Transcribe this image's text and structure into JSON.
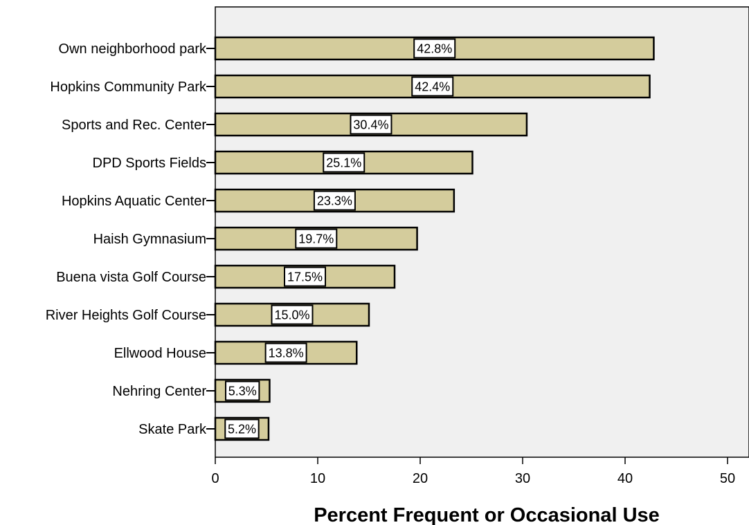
{
  "chart_data": {
    "type": "bar",
    "orientation": "horizontal",
    "categories": [
      "Own neighborhood park",
      "Hopkins Community Park",
      "Sports and Rec. Center",
      "DPD Sports Fields",
      "Hopkins Aquatic Center",
      "Haish Gymnasium",
      "Buena vista Golf Course",
      "River Heights Golf Course",
      "Ellwood House",
      "Nehring Center",
      "Skate Park"
    ],
    "values": [
      42.8,
      42.4,
      30.4,
      25.1,
      23.3,
      19.7,
      17.5,
      15.0,
      13.8,
      5.3,
      5.2
    ],
    "data_labels": [
      "42.8%",
      "42.4%",
      "30.4%",
      "25.1%",
      "23.3%",
      "19.7%",
      "17.5%",
      "15.0%",
      "13.8%",
      "5.3%",
      "5.2%"
    ],
    "xlabel": "Percent Frequent or Occasional Use",
    "ylabel": "",
    "title": "",
    "xlim": [
      0,
      52
    ],
    "xticks": [
      0,
      10,
      20,
      30,
      40,
      50
    ],
    "xtick_labels": [
      "0",
      "10",
      "20",
      "30",
      "40",
      "50"
    ],
    "grid": false,
    "legend": "none",
    "colors": {
      "bar_fill": "#d4cc9c",
      "bar_stroke": "#000000",
      "plot_background": "#f0f0f0",
      "label_box": "#ffffff"
    }
  }
}
